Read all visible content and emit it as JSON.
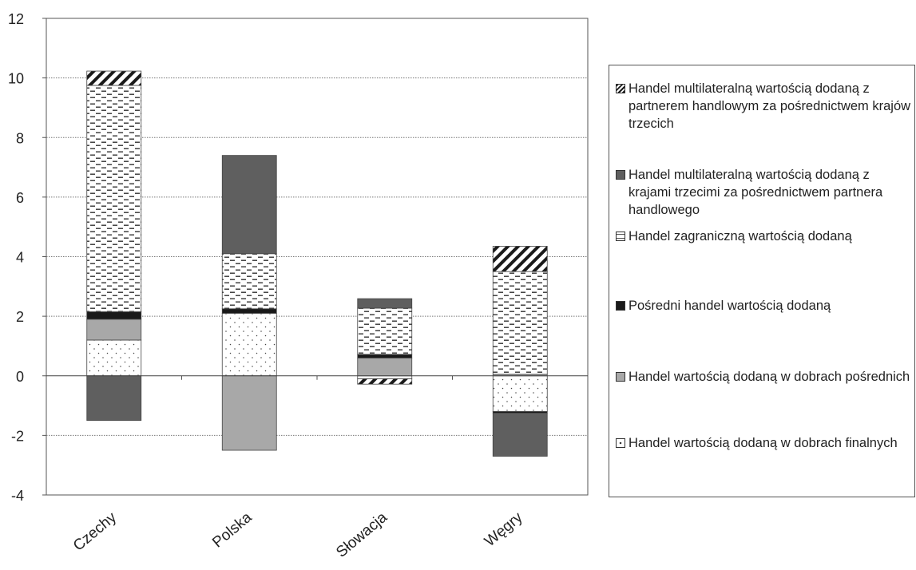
{
  "chart_data": {
    "type": "bar",
    "stacked": true,
    "categories": [
      "Czechy",
      "Polska",
      "Słowacja",
      "Węgry"
    ],
    "ylim": [
      -4,
      12
    ],
    "yticks": [
      "-4",
      "-2",
      "0",
      "2",
      "4",
      "6",
      "8",
      "10",
      "12"
    ],
    "grid": "horizontal-dotted",
    "legend_position": "right",
    "series": [
      {
        "name": "Handel wartością dodaną w dobrach finalnych",
        "pattern": "dots",
        "color": "#ffffff",
        "values": [
          1.2,
          2.1,
          -0.1,
          -1.2
        ]
      },
      {
        "name": "Handel wartością dodaną w dobrach pośrednich",
        "pattern": "solid",
        "color": "#a8a8a8",
        "values": [
          0.7,
          -2.5,
          0.6,
          0.05
        ]
      },
      {
        "name": "Pośredni handel wartością dodaną",
        "pattern": "solid",
        "color": "#1a1a1a",
        "values": [
          0.25,
          0.15,
          0.12,
          -0.05
        ]
      },
      {
        "name": "Handel zagraniczną wartością dodaną",
        "pattern": "dashes",
        "color": "#ffffff",
        "values": [
          7.6,
          1.85,
          1.55,
          3.45
        ]
      },
      {
        "name": "Handel multilateralną wartością dodaną z krajami trzecimi za pośrednictwem partnera handlowego",
        "pattern": "solid",
        "color": "#5f5f5f",
        "values": [
          -1.5,
          3.3,
          0.32,
          -1.45
        ]
      },
      {
        "name": "Handel multilateralną wartością dodaną z partnerem handlowym za pośrednictwem krajów trzecich",
        "pattern": "diagonal",
        "color": "#ffffff",
        "values": [
          0.48,
          0.0,
          -0.18,
          0.85
        ]
      }
    ]
  },
  "legend": [
    {
      "label": "Handel multilateralną wartością dodaną z partnerem handlowym za pośrednictwem krajów trzecich",
      "pattern": "diagonal"
    },
    {
      "label": "Handel multilateralną wartością dodaną z krajami trzecimi za pośrednictwem partnera handlowego",
      "pattern": "dark"
    },
    {
      "label": "Handel zagraniczną wartością dodaną",
      "pattern": "dashes"
    },
    {
      "label": "Pośredni handel wartością dodaną",
      "pattern": "black"
    },
    {
      "label": "Handel wartością dodaną w dobrach pośrednich",
      "pattern": "gray"
    },
    {
      "label": "Handel wartością dodaną w dobrach finalnych",
      "pattern": "dots"
    }
  ]
}
